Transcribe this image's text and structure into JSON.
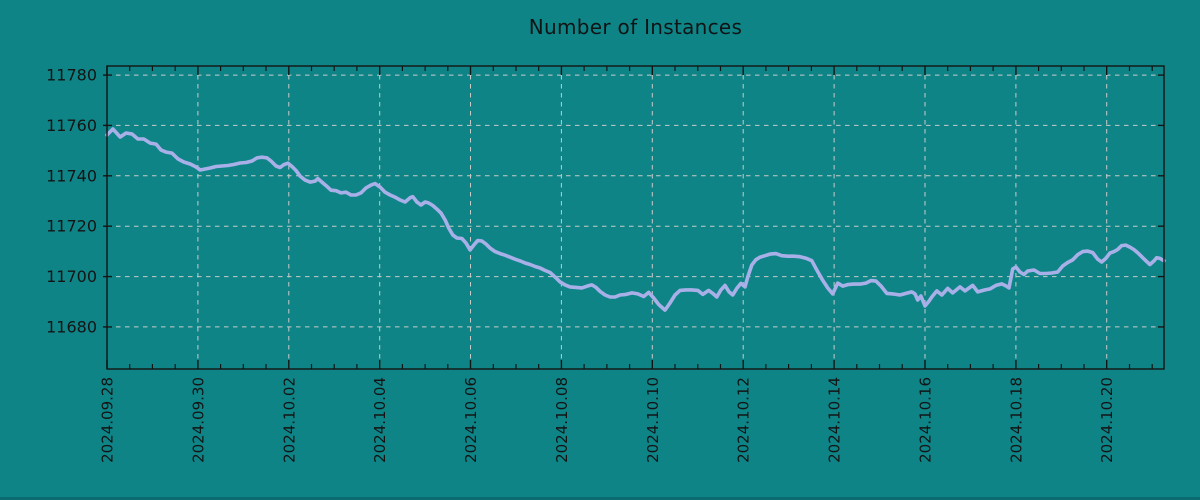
{
  "style": {
    "background": "#0e8487",
    "foreground": "#141414",
    "grid_color": "#c8cbc8",
    "line_color": "#a9b0e8",
    "bottom_edge_color": "#0b6b70"
  },
  "chart_data": {
    "type": "line",
    "title": "Number of Instances",
    "xlabel": "",
    "ylabel": "",
    "grid": true,
    "legend": "none",
    "x_axis": {
      "tick_labels": [
        "2024.09.28",
        "2024.09.30",
        "2024.10.02",
        "2024.10.04",
        "2024.10.06",
        "2024.10.08",
        "2024.10.10",
        "2024.10.12",
        "2024.10.14",
        "2024.10.16",
        "2024.10.18",
        "2024.10.20"
      ],
      "tick_positions_days": [
        0,
        2,
        4,
        6,
        8,
        10,
        12,
        14,
        16,
        18,
        20,
        22
      ],
      "minor_tick_step_days": 0.5,
      "range_days": [
        0,
        23.26
      ]
    },
    "y_axis": {
      "ticks": [
        11680,
        11700,
        11720,
        11740,
        11760,
        11780
      ],
      "range": [
        11663.3,
        11783.6
      ]
    },
    "series": [
      {
        "color": "#a9b0e8",
        "points_day_value": [
          [
            0,
            11756.2
          ],
          [
            0.13,
            11758.6
          ],
          [
            0.29,
            11755.4
          ],
          [
            0.42,
            11757
          ],
          [
            0.55,
            11756.6
          ],
          [
            0.68,
            11754.6
          ],
          [
            0.81,
            11754.6
          ],
          [
            0.95,
            11753
          ],
          [
            1.08,
            11752.6
          ],
          [
            1.19,
            11750.2
          ],
          [
            1.3,
            11749.4
          ],
          [
            1.43,
            11749
          ],
          [
            1.56,
            11746.7
          ],
          [
            1.69,
            11745.5
          ],
          [
            1.83,
            11744.7
          ],
          [
            1.96,
            11743.5
          ],
          [
            2.05,
            11742.3
          ],
          [
            2.16,
            11742.7
          ],
          [
            2.27,
            11743.1
          ],
          [
            2.4,
            11743.7
          ],
          [
            2.53,
            11743.9
          ],
          [
            2.66,
            11744.1
          ],
          [
            2.79,
            11744.5
          ],
          [
            2.93,
            11745.1
          ],
          [
            3.06,
            11745.3
          ],
          [
            3.19,
            11745.9
          ],
          [
            3.3,
            11747.1
          ],
          [
            3.41,
            11747.4
          ],
          [
            3.52,
            11747.1
          ],
          [
            3.61,
            11745.9
          ],
          [
            3.72,
            11743.9
          ],
          [
            3.81,
            11743.3
          ],
          [
            3.89,
            11744.4
          ],
          [
            3.98,
            11745
          ],
          [
            4.07,
            11743.7
          ],
          [
            4.16,
            11742.1
          ],
          [
            4.25,
            11739.9
          ],
          [
            4.36,
            11738.3
          ],
          [
            4.47,
            11737.5
          ],
          [
            4.58,
            11737.9
          ],
          [
            4.64,
            11738.9
          ],
          [
            4.73,
            11737.5
          ],
          [
            4.82,
            11736.1
          ],
          [
            4.93,
            11734.3
          ],
          [
            5.04,
            11734.1
          ],
          [
            5.15,
            11733.2
          ],
          [
            5.26,
            11733.5
          ],
          [
            5.37,
            11732.4
          ],
          [
            5.48,
            11732.4
          ],
          [
            5.59,
            11733.2
          ],
          [
            5.7,
            11735.2
          ],
          [
            5.81,
            11736.3
          ],
          [
            5.9,
            11736.9
          ],
          [
            6.01,
            11735.5
          ],
          [
            6.12,
            11733.5
          ],
          [
            6.23,
            11732.4
          ],
          [
            6.34,
            11731.5
          ],
          [
            6.45,
            11730.4
          ],
          [
            6.56,
            11729.6
          ],
          [
            6.67,
            11731.3
          ],
          [
            6.73,
            11731.7
          ],
          [
            6.82,
            11729.6
          ],
          [
            6.91,
            11728.4
          ],
          [
            7,
            11729.6
          ],
          [
            7.08,
            11729.2
          ],
          [
            7.17,
            11728.2
          ],
          [
            7.26,
            11726.8
          ],
          [
            7.35,
            11725.2
          ],
          [
            7.44,
            11722.5
          ],
          [
            7.52,
            11719.3
          ],
          [
            7.61,
            11716.5
          ],
          [
            7.7,
            11715.3
          ],
          [
            7.81,
            11715.1
          ],
          [
            7.9,
            11713.3
          ],
          [
            7.99,
            11710.6
          ],
          [
            8.08,
            11712.7
          ],
          [
            8.16,
            11714.3
          ],
          [
            8.25,
            11714.1
          ],
          [
            8.34,
            11712.9
          ],
          [
            8.43,
            11711.3
          ],
          [
            8.54,
            11709.9
          ],
          [
            8.65,
            11709.1
          ],
          [
            8.76,
            11708.5
          ],
          [
            8.87,
            11707.7
          ],
          [
            8.98,
            11706.9
          ],
          [
            9.09,
            11706.2
          ],
          [
            9.2,
            11705.4
          ],
          [
            9.31,
            11704.8
          ],
          [
            9.42,
            11704
          ],
          [
            9.53,
            11703.4
          ],
          [
            9.64,
            11702.4
          ],
          [
            9.75,
            11701.6
          ],
          [
            9.86,
            11699.8
          ],
          [
            9.97,
            11697.9
          ],
          [
            10.08,
            11696.7
          ],
          [
            10.19,
            11695.9
          ],
          [
            10.32,
            11695.7
          ],
          [
            10.45,
            11695.5
          ],
          [
            10.58,
            11696.3
          ],
          [
            10.67,
            11696.7
          ],
          [
            10.76,
            11695.7
          ],
          [
            10.85,
            11694.1
          ],
          [
            10.96,
            11692.7
          ],
          [
            11.07,
            11691.9
          ],
          [
            11.18,
            11691.9
          ],
          [
            11.29,
            11692.7
          ],
          [
            11.42,
            11692.9
          ],
          [
            11.55,
            11693.5
          ],
          [
            11.68,
            11693.1
          ],
          [
            11.81,
            11692.1
          ],
          [
            11.92,
            11693.7
          ],
          [
            12.03,
            11691.5
          ],
          [
            12.14,
            11688.9
          ],
          [
            12.28,
            11686.7
          ],
          [
            12.39,
            11689.5
          ],
          [
            12.5,
            11692.7
          ],
          [
            12.61,
            11694.5
          ],
          [
            12.74,
            11694.7
          ],
          [
            12.87,
            11694.7
          ],
          [
            13,
            11694.5
          ],
          [
            13.11,
            11692.9
          ],
          [
            13.24,
            11694.5
          ],
          [
            13.33,
            11693.3
          ],
          [
            13.42,
            11691.9
          ],
          [
            13.51,
            11694.7
          ],
          [
            13.6,
            11696.5
          ],
          [
            13.69,
            11693.9
          ],
          [
            13.77,
            11692.7
          ],
          [
            13.86,
            11695.3
          ],
          [
            13.95,
            11697.3
          ],
          [
            14.04,
            11695.9
          ],
          [
            14.1,
            11699.8
          ],
          [
            14.19,
            11704.6
          ],
          [
            14.28,
            11706.7
          ],
          [
            14.37,
            11707.7
          ],
          [
            14.48,
            11708.3
          ],
          [
            14.59,
            11708.9
          ],
          [
            14.72,
            11709.1
          ],
          [
            14.85,
            11708.3
          ],
          [
            14.98,
            11708.1
          ],
          [
            15.11,
            11708.1
          ],
          [
            15.25,
            11707.9
          ],
          [
            15.38,
            11707.3
          ],
          [
            15.51,
            11706.3
          ],
          [
            15.62,
            11702.6
          ],
          [
            15.75,
            11698.5
          ],
          [
            15.86,
            11695.5
          ],
          [
            15.97,
            11693.1
          ],
          [
            16.08,
            11697.4
          ],
          [
            16.19,
            11696.2
          ],
          [
            16.3,
            11696.8
          ],
          [
            16.43,
            11697
          ],
          [
            16.57,
            11697
          ],
          [
            16.7,
            11697.4
          ],
          [
            16.81,
            11698.4
          ],
          [
            16.92,
            11698.2
          ],
          [
            17.03,
            11696.3
          ],
          [
            17.16,
            11693.3
          ],
          [
            17.29,
            11693.1
          ],
          [
            17.45,
            11692.7
          ],
          [
            17.58,
            11693.3
          ],
          [
            17.71,
            11693.9
          ],
          [
            17.78,
            11693.1
          ],
          [
            17.84,
            11690.7
          ],
          [
            17.91,
            11692.3
          ],
          [
            18,
            11688.3
          ],
          [
            18.09,
            11690.3
          ],
          [
            18.15,
            11691.9
          ],
          [
            18.26,
            11694.3
          ],
          [
            18.37,
            11692.7
          ],
          [
            18.5,
            11695.3
          ],
          [
            18.61,
            11693.5
          ],
          [
            18.77,
            11695.9
          ],
          [
            18.88,
            11694.3
          ],
          [
            19.05,
            11696.5
          ],
          [
            19.16,
            11693.9
          ],
          [
            19.32,
            11694.7
          ],
          [
            19.43,
            11695.1
          ],
          [
            19.56,
            11696.5
          ],
          [
            19.69,
            11697.1
          ],
          [
            19.78,
            11696.3
          ],
          [
            19.85,
            11695.5
          ],
          [
            19.93,
            11703
          ],
          [
            20,
            11703.8
          ],
          [
            20.09,
            11701.8
          ],
          [
            20.18,
            11700.8
          ],
          [
            20.26,
            11702.2
          ],
          [
            20.4,
            11702.6
          ],
          [
            20.53,
            11701.2
          ],
          [
            20.66,
            11701.2
          ],
          [
            20.79,
            11701.4
          ],
          [
            20.92,
            11701.8
          ],
          [
            21.03,
            11704.2
          ],
          [
            21.14,
            11705.6
          ],
          [
            21.25,
            11706.6
          ],
          [
            21.36,
            11708.7
          ],
          [
            21.47,
            11709.9
          ],
          [
            21.58,
            11710.1
          ],
          [
            21.69,
            11709.5
          ],
          [
            21.8,
            11706.9
          ],
          [
            21.89,
            11705.8
          ],
          [
            21.98,
            11707.2
          ],
          [
            22.07,
            11709.3
          ],
          [
            22.16,
            11709.9
          ],
          [
            22.24,
            11710.7
          ],
          [
            22.33,
            11712.3
          ],
          [
            22.42,
            11712.5
          ],
          [
            22.51,
            11711.7
          ],
          [
            22.6,
            11710.7
          ],
          [
            22.69,
            11709.3
          ],
          [
            22.77,
            11707.9
          ],
          [
            22.86,
            11706.3
          ],
          [
            22.95,
            11704.8
          ],
          [
            23.04,
            11706.2
          ],
          [
            23.1,
            11707.5
          ],
          [
            23.17,
            11707.2
          ],
          [
            23.26,
            11706.3
          ]
        ]
      }
    ]
  }
}
